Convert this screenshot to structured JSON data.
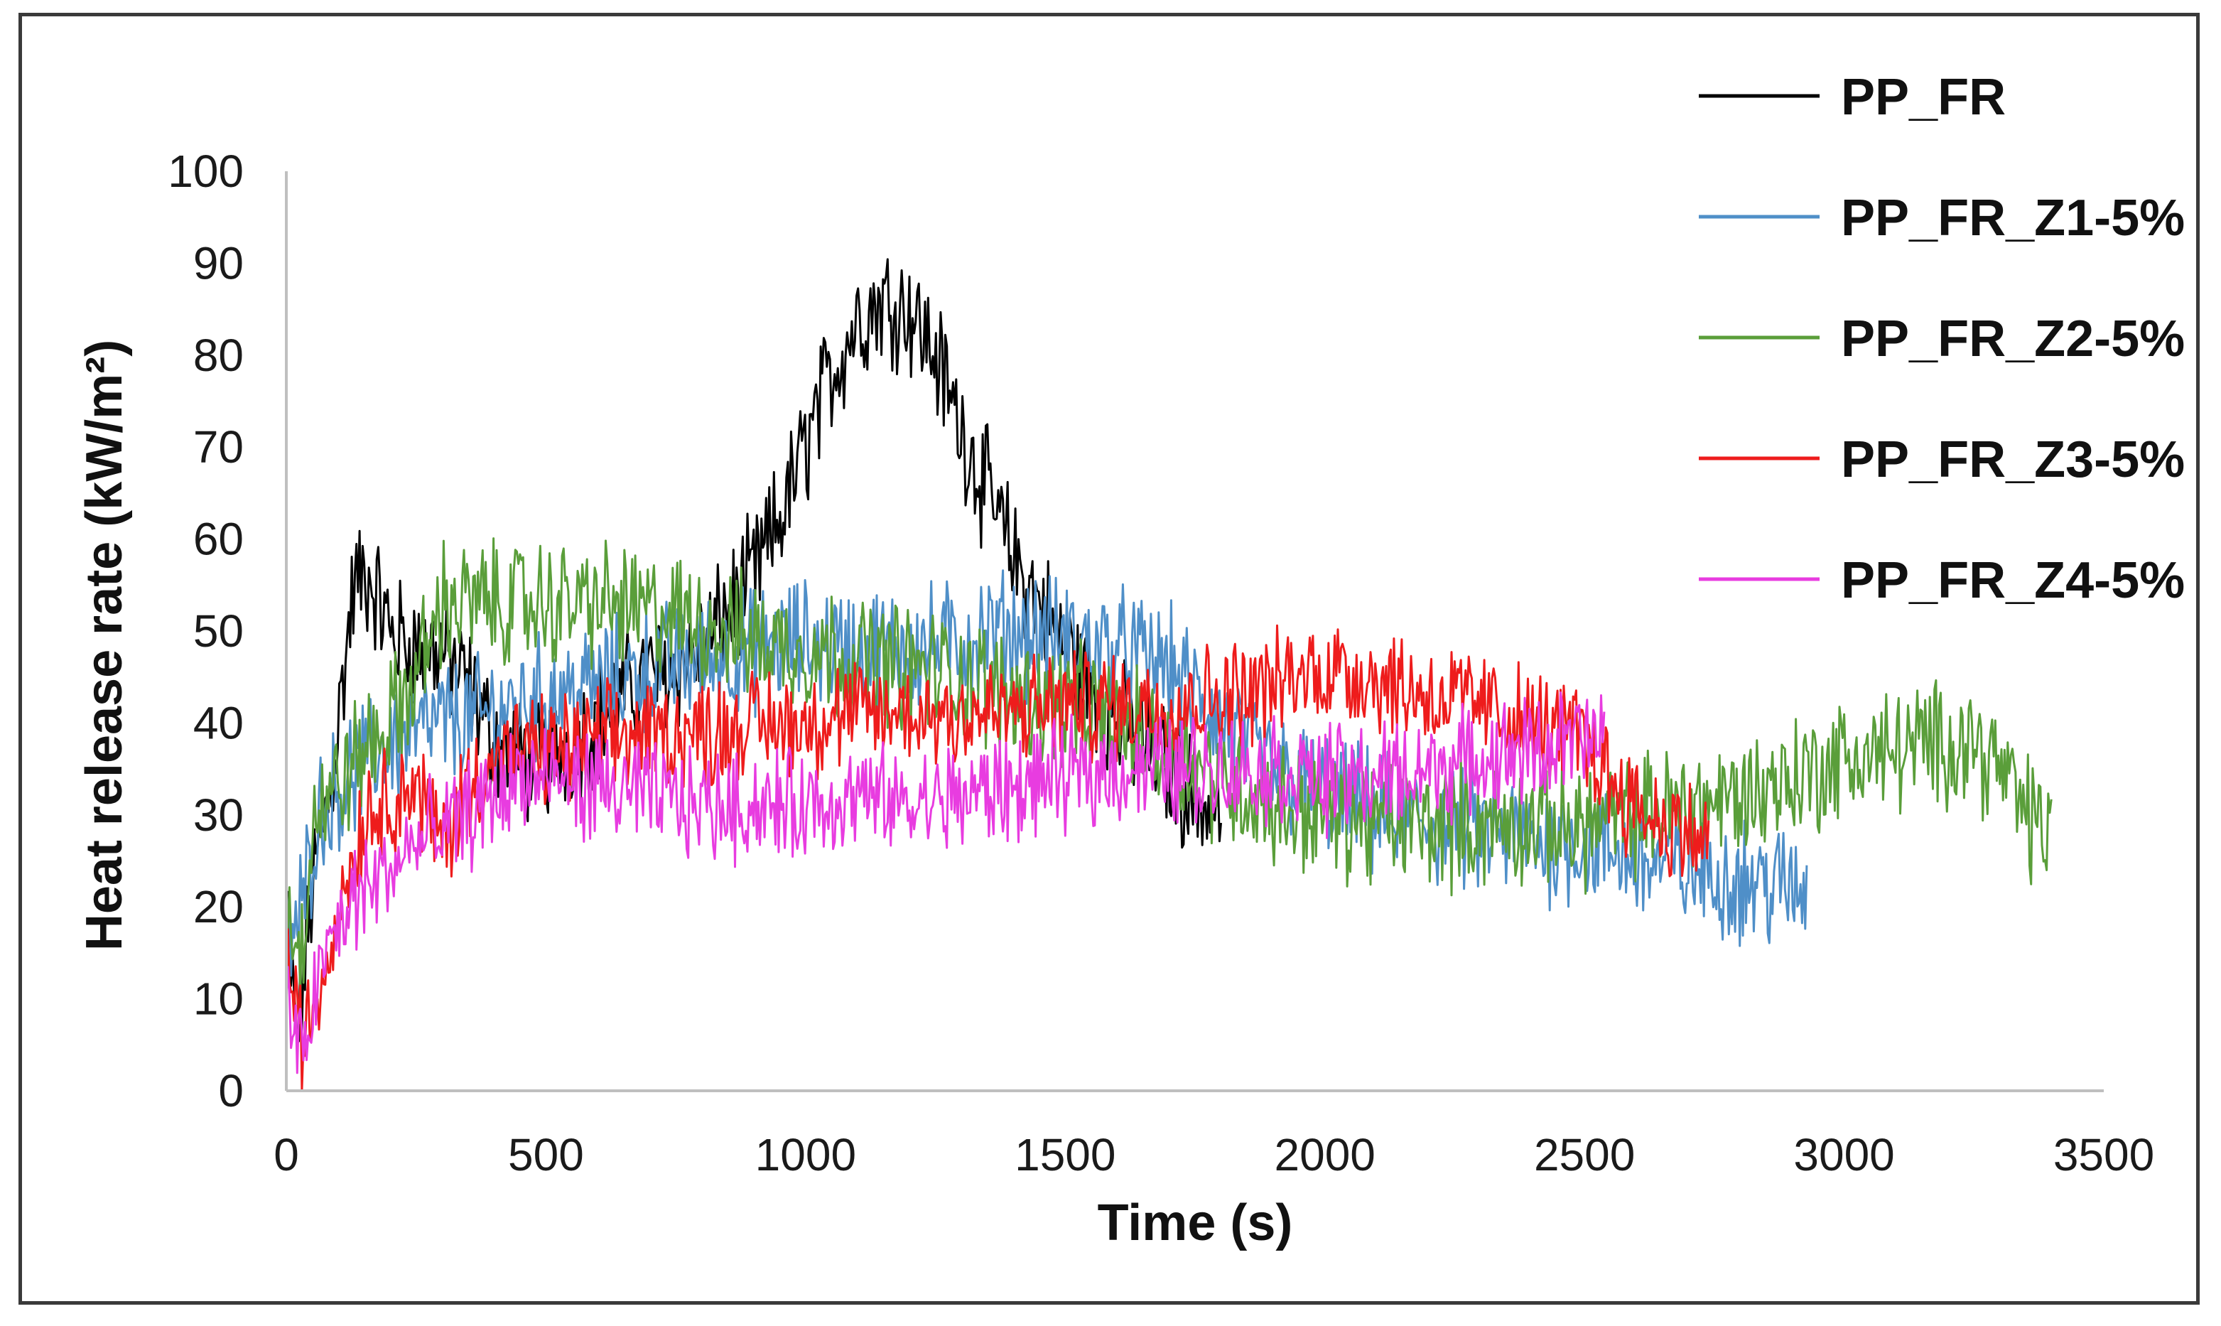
{
  "chart_data": {
    "type": "line",
    "title": "",
    "xlabel": "Time (s)",
    "ylabel": "Heat release rate (kW/m²)",
    "xlim": [
      0,
      3500
    ],
    "ylim": [
      0,
      100
    ],
    "x_ticks": [
      "0",
      "500",
      "1000",
      "1500",
      "2000",
      "2500",
      "3000",
      "3500"
    ],
    "y_ticks": [
      "0",
      "10",
      "20",
      "30",
      "40",
      "50",
      "60",
      "70",
      "80",
      "90",
      "100"
    ],
    "grid": false,
    "legend_position": "top-right",
    "series": [
      {
        "name": "PP_FR",
        "color": "#000000",
        "noise": 4,
        "points": [
          [
            0,
            20
          ],
          [
            20,
            5
          ],
          [
            50,
            22
          ],
          [
            90,
            35
          ],
          [
            130,
            55
          ],
          [
            160,
            56
          ],
          [
            200,
            50
          ],
          [
            250,
            48
          ],
          [
            300,
            48
          ],
          [
            350,
            44
          ],
          [
            400,
            38
          ],
          [
            450,
            36
          ],
          [
            500,
            36
          ],
          [
            550,
            38
          ],
          [
            600,
            40
          ],
          [
            650,
            43
          ],
          [
            700,
            45
          ],
          [
            750,
            46
          ],
          [
            800,
            48
          ],
          [
            850,
            52
          ],
          [
            900,
            56
          ],
          [
            950,
            62
          ],
          [
            1000,
            70
          ],
          [
            1050,
            78
          ],
          [
            1100,
            84
          ],
          [
            1150,
            86
          ],
          [
            1200,
            85
          ],
          [
            1250,
            80
          ],
          [
            1300,
            72
          ],
          [
            1350,
            65
          ],
          [
            1400,
            58
          ],
          [
            1450,
            53
          ],
          [
            1500,
            48
          ],
          [
            1550,
            44
          ],
          [
            1600,
            40
          ],
          [
            1650,
            38
          ],
          [
            1700,
            35
          ],
          [
            1750,
            32
          ],
          [
            1800,
            30
          ]
        ]
      },
      {
        "name": "PP_FR_Z1-5%",
        "color": "#4f8fc8",
        "noise": 4,
        "points": [
          [
            0,
            15
          ],
          [
            30,
            20
          ],
          [
            60,
            30
          ],
          [
            100,
            33
          ],
          [
            200,
            38
          ],
          [
            300,
            40
          ],
          [
            400,
            41
          ],
          [
            500,
            43
          ],
          [
            600,
            44
          ],
          [
            700,
            46
          ],
          [
            800,
            47
          ],
          [
            900,
            48
          ],
          [
            1000,
            49
          ],
          [
            1100,
            48
          ],
          [
            1200,
            48
          ],
          [
            1300,
            49
          ],
          [
            1400,
            50
          ],
          [
            1500,
            49
          ],
          [
            1600,
            48
          ],
          [
            1700,
            46
          ],
          [
            1800,
            40
          ],
          [
            1900,
            35
          ],
          [
            2000,
            32
          ],
          [
            2100,
            30
          ],
          [
            2200,
            29
          ],
          [
            2300,
            28
          ],
          [
            2400,
            27
          ],
          [
            2500,
            27
          ],
          [
            2600,
            25
          ],
          [
            2700,
            24
          ],
          [
            2800,
            23
          ],
          [
            2900,
            22
          ],
          [
            2930,
            22
          ]
        ]
      },
      {
        "name": "PP_FR_Z2-5%",
        "color": "#5a9e3a",
        "noise": 4,
        "points": [
          [
            0,
            20
          ],
          [
            30,
            15
          ],
          [
            50,
            30
          ],
          [
            100,
            33
          ],
          [
            150,
            37
          ],
          [
            200,
            40
          ],
          [
            250,
            45
          ],
          [
            300,
            53
          ],
          [
            350,
            53
          ],
          [
            400,
            53
          ],
          [
            500,
            53
          ],
          [
            600,
            53
          ],
          [
            700,
            52
          ],
          [
            800,
            51
          ],
          [
            900,
            49
          ],
          [
            1000,
            48
          ],
          [
            1100,
            47
          ],
          [
            1200,
            46
          ],
          [
            1300,
            45
          ],
          [
            1400,
            43
          ],
          [
            1500,
            42
          ],
          [
            1600,
            40
          ],
          [
            1700,
            37
          ],
          [
            1800,
            34
          ],
          [
            1900,
            31
          ],
          [
            2000,
            30
          ],
          [
            2100,
            29
          ],
          [
            2200,
            29
          ],
          [
            2300,
            29
          ],
          [
            2400,
            29
          ],
          [
            2500,
            29
          ],
          [
            2600,
            30
          ],
          [
            2700,
            31
          ],
          [
            2800,
            32
          ],
          [
            2900,
            34
          ],
          [
            3000,
            36
          ],
          [
            3100,
            37
          ],
          [
            3200,
            38
          ],
          [
            3250,
            38
          ],
          [
            3300,
            35
          ],
          [
            3350,
            30
          ],
          [
            3400,
            28
          ]
        ]
      },
      {
        "name": "PP_FR_Z3-5%",
        "color": "#ee1c1c",
        "noise": 3.5,
        "points": [
          [
            0,
            15
          ],
          [
            30,
            5
          ],
          [
            60,
            10
          ],
          [
            100,
            20
          ],
          [
            150,
            30
          ],
          [
            200,
            32
          ],
          [
            250,
            33
          ],
          [
            300,
            27
          ],
          [
            350,
            33
          ],
          [
            400,
            36
          ],
          [
            500,
            37
          ],
          [
            600,
            38
          ],
          [
            700,
            39
          ],
          [
            800,
            39
          ],
          [
            900,
            40
          ],
          [
            1000,
            40
          ],
          [
            1100,
            41
          ],
          [
            1200,
            41
          ],
          [
            1300,
            41
          ],
          [
            1400,
            41
          ],
          [
            1500,
            42
          ],
          [
            1600,
            42
          ],
          [
            1700,
            42
          ],
          [
            1800,
            43
          ],
          [
            1900,
            44
          ],
          [
            2000,
            46
          ],
          [
            2100,
            45
          ],
          [
            2200,
            43
          ],
          [
            2300,
            42
          ],
          [
            2400,
            40
          ],
          [
            2500,
            38
          ],
          [
            2550,
            34
          ],
          [
            2600,
            31
          ],
          [
            2650,
            29
          ],
          [
            2700,
            28
          ],
          [
            2740,
            27
          ]
        ]
      },
      {
        "name": "PP_FR_Z4-5%",
        "color": "#e83ce0",
        "noise": 3.5,
        "points": [
          [
            0,
            10
          ],
          [
            30,
            3
          ],
          [
            60,
            12
          ],
          [
            100,
            18
          ],
          [
            150,
            22
          ],
          [
            200,
            24
          ],
          [
            250,
            27
          ],
          [
            300,
            28
          ],
          [
            350,
            30
          ],
          [
            400,
            32
          ],
          [
            450,
            34
          ],
          [
            500,
            34
          ],
          [
            600,
            33
          ],
          [
            700,
            32
          ],
          [
            800,
            31
          ],
          [
            900,
            31
          ],
          [
            1000,
            31
          ],
          [
            1100,
            32
          ],
          [
            1200,
            31
          ],
          [
            1300,
            32
          ],
          [
            1400,
            33
          ],
          [
            1500,
            34
          ],
          [
            1600,
            35
          ],
          [
            1700,
            35
          ],
          [
            1800,
            35
          ],
          [
            1900,
            35
          ],
          [
            2000,
            34
          ],
          [
            2100,
            34
          ],
          [
            2200,
            35
          ],
          [
            2300,
            36
          ],
          [
            2400,
            37
          ],
          [
            2500,
            38
          ],
          [
            2540,
            38
          ]
        ]
      }
    ]
  }
}
